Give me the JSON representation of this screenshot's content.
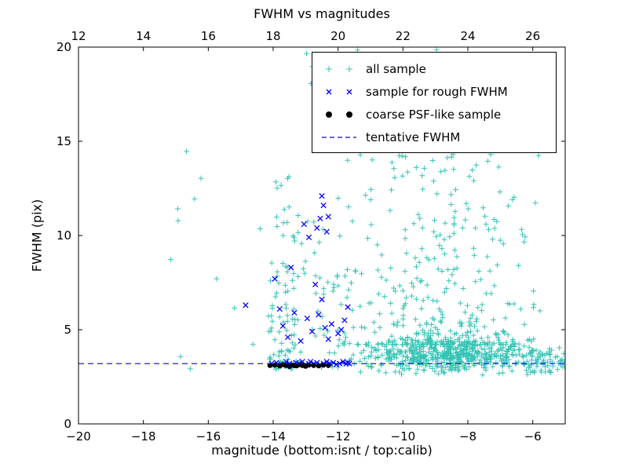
{
  "chart_data": {
    "type": "scatter",
    "title": "FWHM vs magnitudes",
    "xlabel": "magnitude (bottom:isnt / top:calib)",
    "ylabel": "FWHM (pix)",
    "x_axis_bottom": {
      "min": -20,
      "max": -5,
      "tick_values": [
        -20,
        -18,
        -16,
        -14,
        -12,
        -10,
        -8,
        -6
      ],
      "tick_labels": [
        "−20",
        "−18",
        "−16",
        "−14",
        "−12",
        "−10",
        "−8",
        "−6"
      ]
    },
    "x_axis_top": {
      "min": 12,
      "max": 27,
      "tick_values": [
        12,
        14,
        16,
        18,
        20,
        22,
        24,
        26
      ],
      "tick_labels": [
        "12",
        "14",
        "16",
        "18",
        "20",
        "22",
        "24",
        "26"
      ]
    },
    "y_axis": {
      "min": 0,
      "max": 20,
      "tick_values": [
        0,
        5,
        10,
        15,
        20
      ],
      "tick_labels": [
        "0",
        "5",
        "10",
        "15",
        "20"
      ]
    },
    "grid": false,
    "legend_position": "upper-center-right",
    "tentative_fwhm": 3.2,
    "legend": {
      "entries": [
        {
          "label": "all sample",
          "marker": "plus",
          "color": "#35c4b5"
        },
        {
          "label": "sample for rough FWHM",
          "marker": "x",
          "color": "#0000ff"
        },
        {
          "label": "coarse PSF-like sample",
          "marker": "dot",
          "color": "#000000"
        },
        {
          "label": "tentative FWHM",
          "marker": "dashed",
          "color": "#0000ff"
        }
      ]
    },
    "series": [
      {
        "name": "all sample",
        "marker": "+",
        "color": "#35c4b5",
        "seed": 7,
        "clusters": [
          {
            "count": 500,
            "x": [
              -11.9,
              -5.05
            ],
            "xbias": "center",
            "y": [
              2.55,
              4.6
            ],
            "ybias": "center"
          },
          {
            "count": 430,
            "x": [
              -12.5,
              -5.3
            ],
            "xbias": "center",
            "y": [
              4.2,
              20.0
            ],
            "ybias": "low",
            "yk": 2.6
          },
          {
            "count": 75,
            "x": [
              -14.15,
              -13.35
            ],
            "y": [
              2.9,
              8.6
            ],
            "ybias": "low",
            "yk": 1.7
          },
          {
            "count": 16,
            "x": [
              -14.05,
              -13.2
            ],
            "y": [
              8.6,
              14.0
            ]
          },
          {
            "count": 45,
            "x": [
              -13.35,
              -11.9
            ],
            "y": [
              3.0,
              12.5
            ],
            "ybias": "low",
            "yk": 1.9
          },
          {
            "count": 12,
            "x": [
              -17.3,
              -14.3
            ],
            "y": [
              2.7,
              17.0
            ]
          },
          {
            "count": 34,
            "x": [
              -13.2,
              -8.3
            ],
            "y": [
              14.0,
              19.9
            ]
          },
          {
            "count": 55,
            "x": [
              -6.3,
              -4.95
            ],
            "y": [
              2.5,
              4.1
            ],
            "ybias": "center"
          }
        ]
      },
      {
        "name": "sample for rough FWHM",
        "marker": "x",
        "color": "#0000ff",
        "points": [
          [
            -14.85,
            6.3
          ],
          [
            -14.05,
            3.2
          ],
          [
            -13.95,
            7.7
          ],
          [
            -13.9,
            3.25
          ],
          [
            -13.8,
            6.1
          ],
          [
            -13.75,
            3.15
          ],
          [
            -13.7,
            5.2
          ],
          [
            -13.6,
            3.3
          ],
          [
            -13.55,
            4.6
          ],
          [
            -13.5,
            3.2
          ],
          [
            -13.45,
            8.3
          ],
          [
            -13.4,
            3.1
          ],
          [
            -13.35,
            5.9
          ],
          [
            -13.3,
            3.25
          ],
          [
            -13.2,
            3.2
          ],
          [
            -13.15,
            4.4
          ],
          [
            -13.1,
            3.3
          ],
          [
            -13.05,
            10.6
          ],
          [
            -13.0,
            3.15
          ],
          [
            -12.95,
            5.6
          ],
          [
            -12.9,
            9.9
          ],
          [
            -12.9,
            3.2
          ],
          [
            -12.85,
            3.3
          ],
          [
            -12.8,
            4.9
          ],
          [
            -12.75,
            3.2
          ],
          [
            -12.7,
            7.4
          ],
          [
            -12.65,
            10.4
          ],
          [
            -12.65,
            3.25
          ],
          [
            -12.6,
            5.8
          ],
          [
            -12.55,
            10.9
          ],
          [
            -12.55,
            3.15
          ],
          [
            -12.5,
            12.1
          ],
          [
            -12.5,
            6.6
          ],
          [
            -12.45,
            11.6
          ],
          [
            -12.45,
            3.2
          ],
          [
            -12.4,
            5.1
          ],
          [
            -12.35,
            10.2
          ],
          [
            -12.35,
            3.3
          ],
          [
            -12.3,
            11.0
          ],
          [
            -12.3,
            4.5
          ],
          [
            -12.25,
            3.2
          ],
          [
            -12.2,
            5.3
          ],
          [
            -12.15,
            3.25
          ],
          [
            -12.05,
            3.15
          ],
          [
            -12.0,
            4.8
          ],
          [
            -11.95,
            3.2
          ],
          [
            -11.9,
            5.0
          ],
          [
            -11.85,
            3.3
          ],
          [
            -11.8,
            5.5
          ],
          [
            -11.75,
            3.2
          ],
          [
            -11.7,
            6.2
          ],
          [
            -11.7,
            3.25
          ],
          [
            -11.65,
            3.2
          ]
        ]
      },
      {
        "name": "coarse PSF-like sample",
        "marker": "dot",
        "color": "#000000",
        "points": [
          [
            -14.1,
            3.1
          ],
          [
            -13.95,
            3.12
          ],
          [
            -13.8,
            3.08
          ],
          [
            -13.7,
            3.15
          ],
          [
            -13.6,
            3.1
          ],
          [
            -13.5,
            3.05
          ],
          [
            -13.42,
            3.12
          ],
          [
            -13.35,
            3.1
          ],
          [
            -13.28,
            3.08
          ],
          [
            -13.2,
            3.14
          ],
          [
            -13.1,
            3.1
          ],
          [
            -13.0,
            3.06
          ],
          [
            -12.9,
            3.12
          ],
          [
            -12.75,
            3.1
          ],
          [
            -12.6,
            3.08
          ],
          [
            -12.45,
            3.12
          ],
          [
            -12.3,
            3.1
          ]
        ]
      },
      {
        "name": "tentative FWHM",
        "type": "hline",
        "y": 3.2,
        "style": "dashed",
        "color": "#0000ff"
      }
    ]
  }
}
